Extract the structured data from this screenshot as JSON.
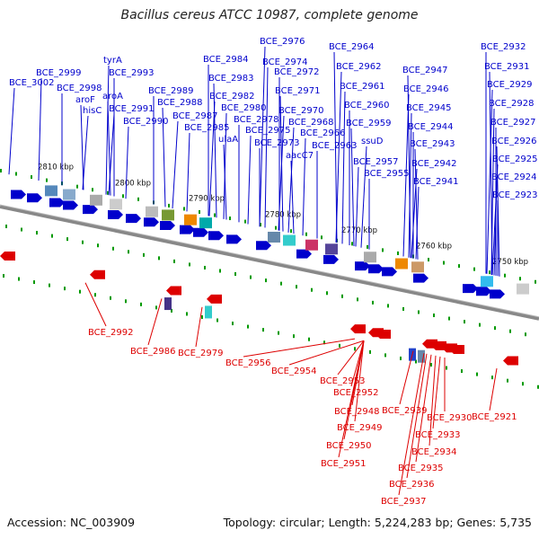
{
  "title": "Bacillus cereus ATCC 10987, complete genome",
  "accession": "Accession: NC_003909",
  "summary": "Topology: circular; Length: 5,224,283 bp; Genes: 5,735",
  "colors": {
    "forward": "#0000cc",
    "reverse": "#dd0000",
    "backbone": "#888888",
    "tick": "#009900"
  },
  "ticks": [
    "2810 kbp",
    "2800 kbp",
    "2790 kbp",
    "2780 kbp",
    "2770 kbp",
    "2760 kbp",
    "2750 kbp"
  ],
  "forward_labels": [
    "BCE_3002",
    "BCE_2999",
    "BCE_2998",
    "aroF",
    "hisC",
    "tyrA",
    "BCE_2993",
    "aroA",
    "BCE_2991",
    "BCE_2990",
    "BCE_2989",
    "BCE_2988",
    "BCE_2987",
    "BCE_2985",
    "BCE_2984",
    "BCE_2983",
    "BCE_2982",
    "BCE_2980",
    "BCE_2978",
    "ulaA",
    "BCE_2976",
    "BCE_2974",
    "BCE_2972",
    "BCE_2971",
    "BCE_2970",
    "BCE_2975",
    "BCE_2973",
    "aacC7",
    "BCE_2968",
    "BCE_2966",
    "BCE_2963",
    "BCE_2964",
    "BCE_2962",
    "BCE_2961",
    "BCE_2960",
    "BCE_2959",
    "ssuD",
    "BCE_2957",
    "BCE_2955",
    "BCE_2947",
    "BCE_2946",
    "BCE_2945",
    "BCE_2944",
    "BCE_2943",
    "BCE_2942",
    "BCE_2941",
    "BCE_2932",
    "BCE_2931",
    "BCE_2929",
    "BCE_2928",
    "BCE_2927",
    "BCE_2926",
    "BCE_2925",
    "BCE_2924",
    "BCE_2923"
  ],
  "reverse_labels": [
    "BCE_2992",
    "BCE_2986",
    "BCE_2979",
    "BCE_2956",
    "BCE_2954",
    "BCE_2953",
    "BCE_2952",
    "BCE_2948",
    "BCE_2949",
    "BCE_2950",
    "BCE_2951",
    "BCE_2939",
    "BCE_2930",
    "BCE_2933",
    "BCE_2934",
    "BCE_2935",
    "BCE_2936",
    "BCE_2937",
    "BCE_2921"
  ]
}
